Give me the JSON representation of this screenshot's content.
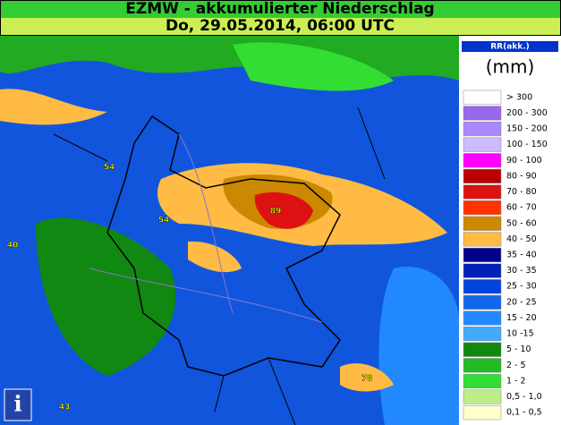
{
  "header": {
    "title": "EZMW - akkumulierter Niederschlag",
    "subtitle": "Do, 29.05.2014, 06:00 UTC"
  },
  "map_labels": [
    "54",
    "54",
    "40",
    "89",
    "78",
    "43"
  ],
  "legend": {
    "title": "RR(akk.)",
    "unit": "(mm)",
    "items": [
      {
        "label": "> 300",
        "color": "#ffffff"
      },
      {
        "label": "200 - 300",
        "color": "#9966ee"
      },
      {
        "label": "150 - 200",
        "color": "#aa88ff"
      },
      {
        "label": "100 - 150",
        "color": "#ccbbff"
      },
      {
        "label": "90 - 100",
        "color": "#ff00ff"
      },
      {
        "label": "80 - 90",
        "color": "#bb0000"
      },
      {
        "label": "70 - 80",
        "color": "#dd1111"
      },
      {
        "label": "60 - 70",
        "color": "#ff3300"
      },
      {
        "label": "50 - 60",
        "color": "#cc8800"
      },
      {
        "label": "40 - 50",
        "color": "#ffbb44"
      },
      {
        "label": "35 - 40",
        "color": "#000088"
      },
      {
        "label": "30 - 35",
        "color": "#0022bb"
      },
      {
        "label": "25 - 30",
        "color": "#0044dd"
      },
      {
        "label": "20 - 25",
        "color": "#1166ee"
      },
      {
        "label": "15 - 20",
        "color": "#2288ff"
      },
      {
        "label": "10 -15",
        "color": "#44aaff"
      },
      {
        "label": "5 - 10",
        "color": "#118811"
      },
      {
        "label": "2 - 5",
        "color": "#22bb22"
      },
      {
        "label": "1 - 2",
        "color": "#33dd33"
      },
      {
        "label": "0,5 - 1,0",
        "color": "#bbee88"
      },
      {
        "label": "0,1 - 0,5",
        "color": "#ffffcc"
      }
    ]
  }
}
